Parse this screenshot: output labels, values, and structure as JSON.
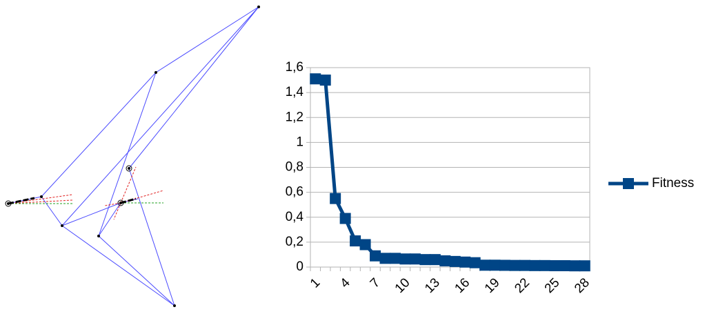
{
  "chart_data": {
    "type": "line",
    "categories": [
      "1",
      null,
      null,
      "4",
      null,
      null,
      "7",
      null,
      null,
      "10",
      null,
      null,
      "13",
      null,
      null,
      "16",
      null,
      null,
      "19",
      null,
      null,
      "22",
      null,
      null,
      "25",
      null,
      null,
      "28"
    ],
    "series": [
      {
        "name": "Fitness",
        "color": "#004586",
        "values": [
          1.51,
          1.5,
          0.55,
          0.39,
          0.21,
          0.18,
          0.09,
          0.07,
          0.07,
          0.065,
          0.065,
          0.06,
          0.06,
          0.05,
          0.045,
          0.04,
          0.035,
          0.015,
          0.015,
          0.014,
          0.013,
          0.013,
          0.012,
          0.012,
          0.011,
          0.011,
          0.01,
          0.01
        ]
      }
    ],
    "ylim": [
      0,
      1.6
    ],
    "yticks": [
      0,
      {
        "value": 0.2,
        "label": "0,2"
      },
      {
        "value": 0.4,
        "label": "0,4"
      },
      {
        "value": 0.6,
        "label": "0,6"
      },
      {
        "value": 0.8,
        "label": "0,8"
      },
      1,
      {
        "value": 1.2,
        "label": "1,2"
      },
      {
        "value": 1.4,
        "label": "1,4"
      },
      {
        "value": 1.6,
        "label": "1,6"
      }
    ],
    "grid": true,
    "legend": "right"
  }
}
